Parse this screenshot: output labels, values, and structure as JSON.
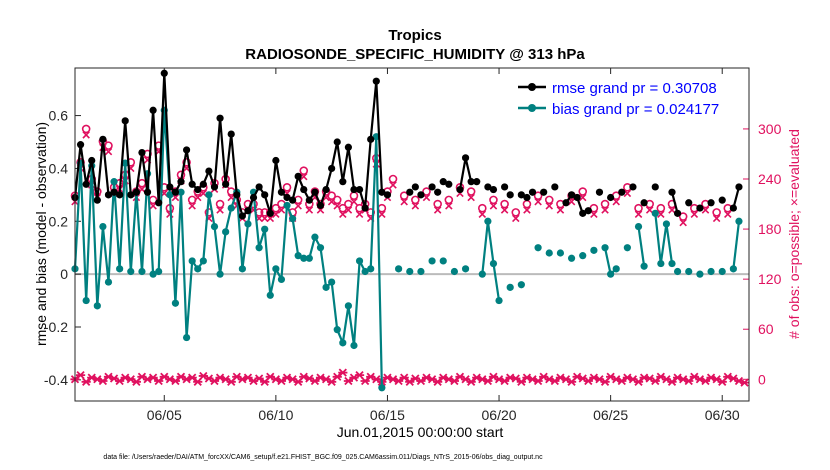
{
  "chart_data": {
    "type": "line",
    "title": "Tropics",
    "subtitle": "RADIOSONDE_SPECIFIC_HUMIDITY @ 313 hPa",
    "xlabel": "Jun.01,2015 00:00:00 start",
    "ylabel_left": "rmse and bias (model - observation)",
    "ylabel_right": "# of obs: o=possible; ×=evaluated",
    "footnote": "data file: /Users/raeder/DAI/ATM_forcXX/CAM6_setup/f.e21.FHIST_BGC.f09_025.CAM6assim.011/Diags_NTrS_2015-06/obs_diag_output.nc",
    "xlim": [
      1,
      31.2
    ],
    "ylim_left": [
      -0.48,
      0.78
    ],
    "ylim_right": [
      -26,
      373
    ],
    "x_ticks": [
      5,
      10,
      15,
      20,
      25,
      30
    ],
    "x_tick_labels": [
      "06/05",
      "06/10",
      "06/15",
      "06/20",
      "06/25",
      "06/30"
    ],
    "y_left_ticks": [
      -0.4,
      -0.2,
      0,
      0.2,
      0.4,
      0.6
    ],
    "y_left_tick_labels": [
      "-0.4",
      "-0.2",
      "0",
      "0.2",
      "0.4",
      "0.6"
    ],
    "y_right_ticks": [
      0,
      60,
      120,
      180,
      240,
      300
    ],
    "y_right_tick_labels": [
      "0",
      "60",
      "120",
      "180",
      "240",
      "300"
    ],
    "legend": [
      "rmse grand pr = 0.30708",
      "bias grand pr = 0.024177"
    ],
    "colors": {
      "rmse": "#000000",
      "bias": "#008080",
      "obs": "#e0115f",
      "zero_line": "#bbbbbb"
    },
    "x": [
      1.0,
      1.25,
      1.5,
      1.75,
      2.0,
      2.25,
      2.5,
      2.75,
      3.0,
      3.25,
      3.5,
      3.75,
      4.0,
      4.25,
      4.5,
      4.75,
      5.0,
      5.25,
      5.5,
      5.75,
      6.0,
      6.25,
      6.5,
      6.75,
      7.0,
      7.25,
      7.5,
      7.75,
      8.0,
      8.25,
      8.5,
      8.75,
      9.0,
      9.25,
      9.5,
      9.75,
      10.0,
      10.25,
      10.5,
      10.75,
      11.0,
      11.25,
      11.5,
      11.75,
      12.0,
      12.25,
      12.5,
      12.75,
      13.0,
      13.25,
      13.5,
      13.75,
      14.0,
      14.25,
      14.5,
      14.75,
      15.0,
      15.25,
      15.5,
      15.75,
      16.0,
      16.25,
      16.5,
      16.75,
      17.0,
      17.25,
      17.5,
      17.75,
      18.0,
      18.25,
      18.5,
      18.75,
      19.0,
      19.25,
      19.5,
      19.75,
      20.0,
      20.25,
      20.5,
      20.75,
      21.0,
      21.25,
      21.5,
      21.75,
      22.0,
      22.25,
      22.5,
      22.75,
      23.0,
      23.25,
      23.5,
      23.75,
      24.0,
      24.25,
      24.5,
      24.75,
      25.0,
      25.25,
      25.5,
      25.75,
      26.0,
      26.25,
      26.5,
      26.75,
      27.0,
      27.25,
      27.5,
      27.75,
      28.0,
      28.25,
      28.5,
      28.75,
      29.0,
      29.25,
      29.5,
      29.75,
      30.0,
      30.25,
      30.5,
      30.75,
      31.0
    ],
    "series": [
      {
        "name": "rmse",
        "axis": "left",
        "segments": [
          [
            0,
            [
              0.29,
              0.49,
              0.34,
              0.43,
              0.28,
              0.51,
              0.3,
              0.31,
              0.3,
              0.58,
              0.3,
              0.31,
              0.46,
              0.31,
              0.62,
              0.27,
              0.76,
              0.33,
              0.31,
              0.35,
              0.47,
              0.34,
              0.32,
              0.34,
              0.39,
              0.33,
              0.59,
              0.34,
              0.53,
              0.3,
              0.22,
              0.24,
              0.29,
              0.33,
              0.3,
              0.23,
              0.43,
              0.31,
              0.29,
              0.28,
              0.37,
              0.32,
              0.28,
              0.31,
              0.26,
              0.32,
              0.4,
              0.5,
              0.35,
              0.48,
              0.32,
              0.32,
              0.25,
              0.51,
              0.73,
              0.31,
              0.3
            ]
          ],
          [
            69,
            [
              0.32,
              0.44,
              0.35
            ]
          ],
          [
            88,
            [
              0.27,
              0.3,
              0.29,
              0.23,
              0.24
            ]
          ],
          [
            107,
            [
              0.31,
              0.23
            ]
          ],
          [
            118,
            [
              0.25,
              0.33
            ]
          ]
        ],
        "points": [
          [
            60,
            0.31
          ],
          [
            61,
            0.33
          ],
          [
            62,
            0.3
          ],
          [
            64,
            0.33
          ],
          [
            65,
            0.31
          ],
          [
            66,
            0.35
          ],
          [
            67,
            0.34
          ],
          [
            72,
            0.35
          ],
          [
            74,
            0.33
          ],
          [
            75,
            0.32
          ],
          [
            77,
            0.33
          ],
          [
            78,
            0.3
          ],
          [
            80,
            0.3
          ],
          [
            81,
            0.29
          ],
          [
            82,
            0.31
          ],
          [
            84,
            0.31
          ],
          [
            86,
            0.33
          ],
          [
            94,
            0.31
          ],
          [
            96,
            0.29
          ],
          [
            98,
            0.31
          ],
          [
            100,
            0.33
          ],
          [
            102,
            0.27
          ],
          [
            104,
            0.33
          ],
          [
            110,
            0.27
          ],
          [
            112,
            0.25
          ],
          [
            114,
            0.27
          ],
          [
            116,
            0.28
          ]
        ]
      },
      {
        "name": "bias",
        "axis": "left",
        "segments": [
          [
            0,
            [
              0.02,
              0.42,
              -0.1,
              0.41,
              -0.12,
              0.18,
              -0.03,
              0.35,
              0.02,
              0.42,
              0.01,
              0.31,
              0.01,
              0.38,
              0.0,
              0.01,
              0.62,
              0.3,
              -0.11,
              0.31,
              -0.24,
              0.05,
              0.02,
              0.05,
              0.3,
              0.18,
              0.0,
              0.16,
              0.25,
              0.31,
              0.02,
              0.19,
              0.31,
              0.1,
              0.17,
              -0.08,
              0.02,
              -0.02,
              0.26,
              0.21,
              0.07,
              0.06,
              0.06,
              0.14,
              0.1,
              -0.05,
              -0.03,
              -0.21,
              -0.26,
              -0.12,
              -0.27,
              0.05,
              0.01,
              0.02,
              0.52,
              -0.43
            ]
          ],
          [
            73,
            [
              0.0,
              0.2,
              0.04,
              -0.1
            ]
          ],
          [
            95,
            [
              0.1,
              0.0,
              0.02
            ]
          ],
          [
            101,
            [
              0.18,
              0.03
            ]
          ],
          [
            104,
            [
              0.23,
              0.04,
              0.19,
              0.04
            ]
          ],
          [
            118,
            [
              0.02,
              0.2
            ]
          ]
        ],
        "points": [
          [
            58,
            0.02
          ],
          [
            60,
            0.01
          ],
          [
            62,
            0.01
          ],
          [
            64,
            0.05
          ],
          [
            66,
            0.05
          ],
          [
            68,
            0.01
          ],
          [
            70,
            0.02
          ],
          [
            78,
            -0.05
          ],
          [
            80,
            -0.04
          ],
          [
            83,
            0.1
          ],
          [
            85,
            0.08
          ],
          [
            87,
            0.08
          ],
          [
            89,
            0.06
          ],
          [
            91,
            0.07
          ],
          [
            93,
            0.09
          ],
          [
            99,
            0.1
          ],
          [
            108,
            0.01
          ],
          [
            110,
            0.01
          ],
          [
            112,
            0.0
          ],
          [
            114,
            0.01
          ],
          [
            116,
            0.01
          ]
        ]
      }
    ],
    "obs_possible": [
      [
        1.0,
        220
      ],
      [
        1.25,
        260
      ],
      [
        1.5,
        300
      ],
      [
        1.75,
        240
      ],
      [
        2.0,
        225
      ],
      [
        2.25,
        285
      ],
      [
        2.5,
        280
      ],
      [
        2.75,
        230
      ],
      [
        3.0,
        235
      ],
      [
        3.25,
        245
      ],
      [
        3.5,
        260
      ],
      [
        3.75,
        225
      ],
      [
        4.0,
        235
      ],
      [
        4.25,
        270
      ],
      [
        4.5,
        215
      ],
      [
        4.75,
        280
      ],
      [
        5.0,
        230
      ],
      [
        5.25,
        205
      ],
      [
        5.5,
        225
      ],
      [
        5.75,
        245
      ],
      [
        6.0,
        260
      ],
      [
        6.25,
        215
      ],
      [
        6.5,
        225
      ],
      [
        6.75,
        230
      ],
      [
        7.0,
        200
      ],
      [
        7.25,
        235
      ],
      [
        7.5,
        210
      ],
      [
        7.75,
        240
      ],
      [
        8.0,
        225
      ],
      [
        8.25,
        215
      ],
      [
        8.5,
        200
      ],
      [
        8.75,
        210
      ],
      [
        9.0,
        210
      ],
      [
        9.25,
        200
      ],
      [
        9.5,
        200
      ],
      [
        9.75,
        200
      ],
      [
        10.0,
        205
      ],
      [
        10.25,
        210
      ],
      [
        10.5,
        230
      ],
      [
        10.75,
        200
      ],
      [
        11.0,
        215
      ],
      [
        11.25,
        250
      ],
      [
        11.5,
        210
      ],
      [
        11.75,
        225
      ],
      [
        12.0,
        210
      ],
      [
        12.25,
        225
      ],
      [
        12.5,
        220
      ],
      [
        12.75,
        215
      ],
      [
        13.0,
        205
      ],
      [
        13.25,
        210
      ],
      [
        13.5,
        220
      ],
      [
        13.75,
        205
      ],
      [
        14.0,
        210
      ],
      [
        14.25,
        200
      ],
      [
        14.5,
        265
      ],
      [
        14.75,
        205
      ],
      [
        15.0,
        225
      ],
      [
        15.25,
        240
      ],
      [
        15.75,
        220
      ],
      [
        16.25,
        215
      ],
      [
        16.75,
        225
      ],
      [
        17.25,
        210
      ],
      [
        17.75,
        215
      ],
      [
        18.25,
        230
      ],
      [
        18.75,
        225
      ],
      [
        19.25,
        205
      ],
      [
        19.75,
        215
      ],
      [
        20.25,
        210
      ],
      [
        20.75,
        200
      ],
      [
        21.25,
        210
      ],
      [
        21.75,
        220
      ],
      [
        22.25,
        215
      ],
      [
        22.75,
        210
      ],
      [
        23.25,
        220
      ],
      [
        23.75,
        225
      ],
      [
        24.25,
        205
      ],
      [
        24.75,
        210
      ],
      [
        25.25,
        220
      ],
      [
        25.75,
        230
      ],
      [
        26.25,
        205
      ],
      [
        26.75,
        210
      ],
      [
        27.25,
        205
      ],
      [
        27.75,
        210
      ],
      [
        28.25,
        195
      ],
      [
        28.75,
        205
      ],
      [
        29.25,
        210
      ],
      [
        29.75,
        200
      ],
      [
        30.25,
        205
      ]
    ],
    "obs_evaluated": [
      [
        1.0,
        0
      ],
      [
        1.25,
        5
      ],
      [
        1.5,
        -3
      ],
      [
        1.75,
        2
      ],
      [
        2.0,
        0
      ],
      [
        2.25,
        -2
      ],
      [
        2.5,
        3
      ],
      [
        2.75,
        1
      ],
      [
        3.0,
        -2
      ],
      [
        3.25,
        2
      ],
      [
        3.5,
        0
      ],
      [
        3.75,
        -3
      ],
      [
        4.0,
        3
      ],
      [
        4.25,
        0
      ],
      [
        4.5,
        2
      ],
      [
        4.75,
        -2
      ],
      [
        5.0,
        3
      ],
      [
        5.25,
        0
      ],
      [
        5.5,
        -2
      ],
      [
        5.75,
        3
      ],
      [
        6.0,
        0
      ],
      [
        6.25,
        2
      ],
      [
        6.5,
        -3
      ],
      [
        6.75,
        4
      ],
      [
        7.0,
        1
      ],
      [
        7.25,
        -2
      ],
      [
        7.5,
        2
      ],
      [
        7.75,
        0
      ],
      [
        8.0,
        -3
      ],
      [
        8.25,
        3
      ],
      [
        8.5,
        0
      ],
      [
        8.75,
        2
      ],
      [
        9.0,
        -2
      ],
      [
        9.25,
        1
      ],
      [
        9.5,
        -3
      ],
      [
        9.75,
        3
      ],
      [
        10.0,
        0
      ],
      [
        10.25,
        -2
      ],
      [
        10.5,
        2
      ],
      [
        10.75,
        0
      ],
      [
        11.0,
        -3
      ],
      [
        11.25,
        3
      ],
      [
        11.5,
        1
      ],
      [
        11.75,
        -2
      ],
      [
        12.0,
        2
      ],
      [
        12.25,
        0
      ],
      [
        12.5,
        -3
      ],
      [
        12.75,
        3
      ],
      [
        13.0,
        8
      ],
      [
        13.25,
        -2
      ],
      [
        13.5,
        2
      ],
      [
        13.75,
        5
      ],
      [
        14.0,
        -2
      ],
      [
        14.25,
        3
      ],
      [
        14.5,
        0
      ],
      [
        14.75,
        -3
      ],
      [
        15.0,
        2
      ],
      [
        15.25,
        0
      ],
      [
        15.5,
        -2
      ],
      [
        15.75,
        2
      ],
      [
        16.0,
        -3
      ],
      [
        16.25,
        1
      ],
      [
        16.5,
        -2
      ],
      [
        16.75,
        2
      ],
      [
        17.0,
        0
      ],
      [
        17.25,
        -3
      ],
      [
        17.5,
        2
      ],
      [
        17.75,
        0
      ],
      [
        18.0,
        -2
      ],
      [
        18.25,
        3
      ],
      [
        18.5,
        0
      ],
      [
        18.75,
        -3
      ],
      [
        19.0,
        2
      ],
      [
        19.25,
        0
      ],
      [
        19.5,
        -2
      ],
      [
        19.75,
        3
      ],
      [
        20.0,
        0
      ],
      [
        20.25,
        -2
      ],
      [
        20.5,
        2
      ],
      [
        20.75,
        1
      ],
      [
        21.0,
        -3
      ],
      [
        21.25,
        2
      ],
      [
        21.5,
        0
      ],
      [
        21.75,
        -2
      ],
      [
        22.0,
        3
      ],
      [
        22.25,
        0
      ],
      [
        22.5,
        -2
      ],
      [
        22.75,
        2
      ],
      [
        23.0,
        0
      ],
      [
        23.25,
        -3
      ],
      [
        23.5,
        3
      ],
      [
        23.75,
        1
      ],
      [
        24.0,
        -2
      ],
      [
        24.25,
        2
      ],
      [
        24.5,
        0
      ],
      [
        24.75,
        -3
      ],
      [
        25.0,
        3
      ],
      [
        25.25,
        0
      ],
      [
        25.5,
        -2
      ],
      [
        25.75,
        2
      ],
      [
        26.0,
        0
      ],
      [
        26.25,
        -3
      ],
      [
        26.5,
        2
      ],
      [
        26.75,
        1
      ],
      [
        27.0,
        -2
      ],
      [
        27.25,
        3
      ],
      [
        27.5,
        0
      ],
      [
        27.75,
        -3
      ],
      [
        28.0,
        2
      ],
      [
        28.25,
        0
      ],
      [
        28.5,
        -2
      ],
      [
        28.75,
        3
      ],
      [
        29.0,
        0
      ],
      [
        29.25,
        -2
      ],
      [
        29.5,
        2
      ],
      [
        29.75,
        0
      ],
      [
        30.0,
        -3
      ],
      [
        30.25,
        3
      ],
      [
        30.5,
        1
      ],
      [
        30.75,
        -2
      ],
      [
        31.0,
        -4
      ]
    ]
  }
}
